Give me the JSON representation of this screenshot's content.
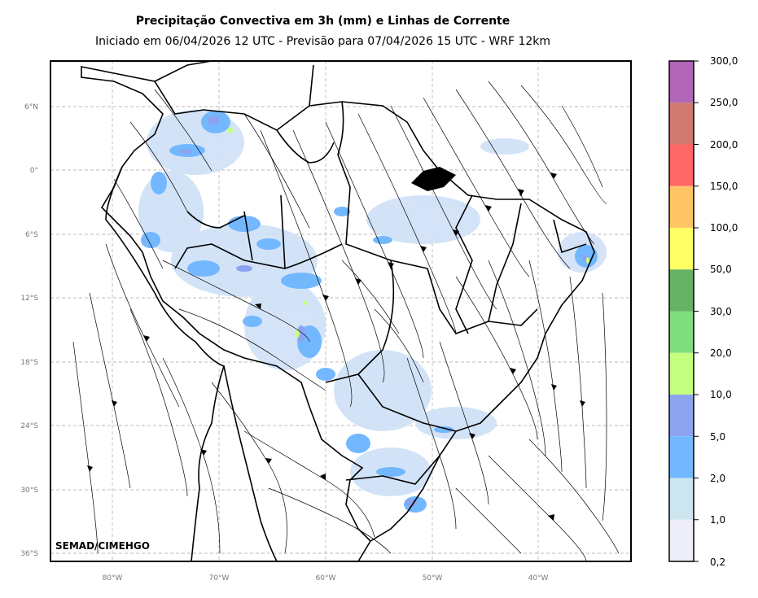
{
  "header": {
    "title": "Precipitação Convectiva em 3h (mm) e Linhas de Corrente",
    "subtitle": "Iniciado em 06/04/2026 12 UTC - Previsão para 07/04/2026 15 UTC - WRF 12km"
  },
  "map": {
    "credit": "SEMAD/CIMEHGO",
    "lat_labels": [
      "6°N",
      "0°",
      "6°S",
      "12°S",
      "18°S",
      "24°S",
      "30°S",
      "36°S"
    ],
    "lon_labels": [
      "80°W",
      "70°W",
      "60°W",
      "50°W",
      "40°W"
    ]
  },
  "colorbar": {
    "labels": [
      "300,0",
      "250,0",
      "200,0",
      "150,0",
      "100,0",
      "50,0",
      "30,0",
      "20,0",
      "10,0",
      "5,0",
      "2,0",
      "1,0",
      "0,2"
    ],
    "colors": [
      "#b266b8",
      "#d17a72",
      "#ff6666",
      "#ffc466",
      "#ffff66",
      "#66b266",
      "#80dd80",
      "#c4ff80",
      "#8ca4f0",
      "#73b8ff",
      "#cce5ef",
      "#eeeefa"
    ]
  },
  "colors": {
    "grid": "#bbbbbb",
    "border": "#000000",
    "rain_light": "#cfe0f7",
    "rain_mid": "#73b8ff",
    "rain_heavy": "#8ca4f0"
  }
}
